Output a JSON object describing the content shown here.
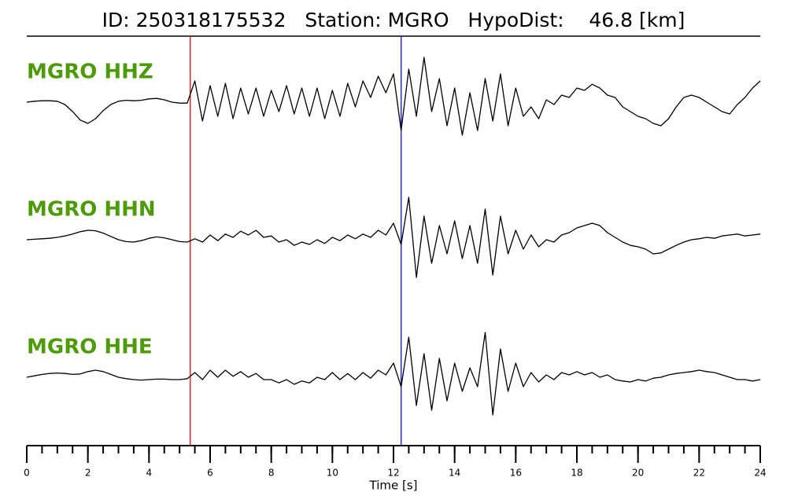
{
  "chart_data": {
    "type": "waveform",
    "title": "ID: 250318175532   Station: MGRO   HypoDist:    46.8 [km]",
    "xlabel": "Time [s]",
    "xlim": [
      0,
      24
    ],
    "xticks": [
      0,
      2,
      4,
      6,
      8,
      10,
      12,
      14,
      16,
      18,
      20,
      22,
      24
    ],
    "xminorticks": [
      0,
      0.5,
      1,
      1.5,
      2,
      2.5,
      3,
      3.5,
      4,
      4.5,
      5,
      5.5,
      6,
      6.5,
      7,
      7.5,
      8,
      8.5,
      9,
      9.5,
      10,
      10.5,
      11,
      11.5,
      12,
      12.5,
      13,
      13.5,
      14,
      14.5,
      15,
      15.5,
      16,
      16.5,
      17,
      17.5,
      18,
      18.5,
      19,
      19.5,
      20,
      20.5,
      21,
      21.5,
      22,
      22.5,
      23,
      23.5,
      24
    ],
    "label_color": "#4d9a0a",
    "markers": [
      {
        "x": 5.35,
        "color": "#e8252a"
      },
      {
        "x": 12.25,
        "color": "#2a2ae0"
      }
    ],
    "x": [
      0,
      0.25,
      0.5,
      0.75,
      1,
      1.25,
      1.5,
      1.75,
      2,
      2.25,
      2.5,
      2.75,
      3,
      3.25,
      3.5,
      3.75,
      4,
      4.25,
      4.5,
      4.75,
      5,
      5.25,
      5.5,
      5.75,
      6,
      6.25,
      6.5,
      6.75,
      7,
      7.25,
      7.5,
      7.75,
      8,
      8.25,
      8.5,
      8.75,
      9,
      9.25,
      9.5,
      9.75,
      10,
      10.25,
      10.5,
      10.75,
      11,
      11.25,
      11.5,
      11.75,
      12,
      12.25,
      12.5,
      12.75,
      13,
      13.25,
      13.5,
      13.75,
      14,
      14.25,
      14.5,
      14.75,
      15,
      15.25,
      15.5,
      15.75,
      16,
      16.25,
      16.5,
      16.75,
      17,
      17.25,
      17.5,
      17.75,
      18,
      18.25,
      18.5,
      18.75,
      19,
      19.25,
      19.5,
      19.75,
      20,
      20.25,
      20.5,
      20.75,
      21,
      21.25,
      21.5,
      21.75,
      22,
      22.25,
      22.5,
      22.75,
      23,
      23.25,
      23.5,
      23.75,
      24
    ],
    "series": [
      {
        "name": "MGRO HHZ",
        "color": "#000000",
        "values": [
          0,
          0.02,
          0.03,
          0.03,
          0.02,
          -0.05,
          -0.2,
          -0.38,
          -0.45,
          -0.35,
          -0.18,
          -0.05,
          0.02,
          0.04,
          0.03,
          0.04,
          0.07,
          0.08,
          0.05,
          0,
          -0.02,
          -0.02,
          0.45,
          -0.4,
          0.35,
          -0.3,
          0.4,
          -0.35,
          0.3,
          -0.25,
          0.3,
          -0.3,
          0.25,
          -0.2,
          0.35,
          -0.25,
          0.3,
          -0.3,
          0.3,
          -0.35,
          0.25,
          -0.3,
          0.4,
          -0.1,
          0.45,
          0.1,
          0.55,
          0.2,
          0.6,
          -0.6,
          0.7,
          -0.3,
          0.95,
          -0.2,
          0.5,
          -0.5,
          0.3,
          -0.7,
          0.2,
          -0.6,
          0.5,
          -0.4,
          0.6,
          -0.5,
          0.3,
          -0.3,
          -0.1,
          -0.35,
          0.05,
          -0.05,
          0.15,
          0.1,
          0.3,
          0.25,
          0.38,
          0.3,
          0.15,
          0.1,
          -0.1,
          -0.2,
          -0.3,
          -0.35,
          -0.45,
          -0.5,
          -0.35,
          -0.1,
          0.1,
          0.15,
          0.1,
          0,
          -0.1,
          -0.2,
          -0.25,
          -0.05,
          0.1,
          0.3,
          0.45
        ]
      },
      {
        "name": "MGRO HHN",
        "color": "#000000",
        "values": [
          0,
          0.01,
          0.02,
          0.03,
          0.05,
          0.08,
          0.12,
          0.17,
          0.2,
          0.19,
          0.14,
          0.07,
          0,
          -0.04,
          -0.05,
          -0.02,
          0.03,
          0.06,
          0.04,
          0,
          -0.04,
          -0.05,
          0.02,
          -0.05,
          0.1,
          -0.02,
          0.12,
          0.05,
          0.18,
          0.1,
          0.2,
          0.05,
          0.08,
          -0.05,
          0,
          -0.12,
          -0.05,
          -0.1,
          0,
          -0.08,
          0.05,
          -0.02,
          0.1,
          0.02,
          0.12,
          0.05,
          0.2,
          0.1,
          0.35,
          -0.1,
          0.9,
          -0.8,
          0.5,
          -0.5,
          0.3,
          -0.3,
          0.4,
          -0.4,
          0.3,
          -0.5,
          0.65,
          -0.75,
          0.5,
          -0.3,
          0.2,
          -0.2,
          0.1,
          -0.15,
          0,
          -0.05,
          0.1,
          0.15,
          0.25,
          0.3,
          0.35,
          0.3,
          0.15,
          0.05,
          -0.05,
          -0.12,
          -0.15,
          -0.2,
          -0.3,
          -0.28,
          -0.2,
          -0.12,
          -0.05,
          0,
          0.02,
          0.05,
          0.03,
          0.08,
          0.1,
          0.12,
          0.08,
          0.1,
          0.12
        ]
      },
      {
        "name": "MGRO HHE",
        "color": "#000000",
        "values": [
          0,
          0.03,
          0.06,
          0.08,
          0.09,
          0.08,
          0.06,
          0.07,
          0.12,
          0.15,
          0.12,
          0.06,
          0,
          -0.03,
          -0.05,
          -0.06,
          -0.05,
          -0.04,
          -0.04,
          -0.05,
          -0.05,
          -0.03,
          0.1,
          -0.05,
          0.15,
          0,
          0.15,
          0.02,
          0.12,
          0,
          0.08,
          -0.05,
          -0.05,
          -0.12,
          -0.05,
          -0.15,
          -0.08,
          -0.12,
          0,
          -0.05,
          0.1,
          -0.05,
          0.08,
          -0.05,
          0.1,
          -0.02,
          0.15,
          0.05,
          0.3,
          -0.2,
          0.85,
          -0.6,
          0.5,
          -0.7,
          0.4,
          -0.5,
          0.3,
          -0.3,
          0.2,
          -0.2,
          0.95,
          -0.8,
          0.6,
          -0.3,
          0.3,
          -0.2,
          0.1,
          -0.1,
          0.05,
          -0.05,
          0.1,
          0.05,
          0.12,
          0.05,
          0.1,
          0,
          0.05,
          -0.05,
          -0.08,
          -0.1,
          -0.05,
          -0.08,
          -0.02,
          0,
          0.05,
          0.08,
          0.1,
          0.12,
          0.15,
          0.12,
          0.1,
          0.05,
          0,
          -0.05,
          -0.05,
          -0.08,
          -0.05
        ]
      }
    ]
  }
}
